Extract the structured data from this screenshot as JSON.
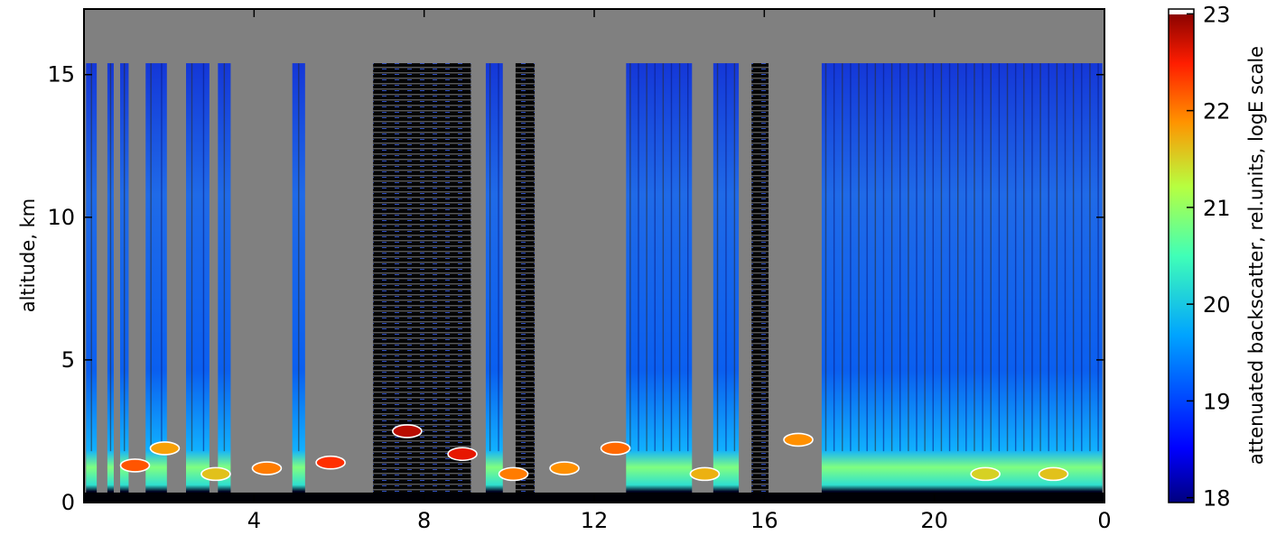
{
  "chart_data": {
    "type": "heatmap",
    "title": "",
    "xlabel": "",
    "ylabel": "altitude, km",
    "x_ticks": [
      4,
      8,
      12,
      16,
      20,
      0
    ],
    "x_tick_labels": [
      "4",
      "8",
      "12",
      "16",
      "20",
      "0"
    ],
    "y_ticks": [
      0,
      5,
      10,
      15
    ],
    "y_tick_labels": [
      "0",
      "5",
      "10",
      "15"
    ],
    "ylim": [
      0,
      17.3
    ],
    "colorbar": {
      "label": "attenuated backscatter, rel.units, logE scale",
      "range": [
        17.95,
        23.05
      ],
      "ticks": [
        18,
        19,
        20,
        21,
        22,
        23
      ],
      "tick_labels": [
        "18",
        "19",
        "20",
        "21",
        "22",
        "23"
      ],
      "colormap": "jet"
    },
    "background_color": "#808080",
    "mask_top_altitude_km": 15.4,
    "surface_layer_top_km": 0.35,
    "boundary_layer_top_km": 1.8,
    "data_columns": [
      {
        "x": [
          0.05,
          0.3
        ],
        "state": "signal"
      },
      {
        "x": [
          0.55,
          0.7
        ],
        "state": "signal"
      },
      {
        "x": [
          0.85,
          1.05
        ],
        "state": "signal"
      },
      {
        "x": [
          1.45,
          1.95
        ],
        "state": "signal"
      },
      {
        "x": [
          2.4,
          2.95
        ],
        "state": "signal"
      },
      {
        "x": [
          3.15,
          3.45
        ],
        "state": "signal"
      },
      {
        "x": [
          4.9,
          5.2
        ],
        "state": "signal"
      },
      {
        "x": [
          6.8,
          9.1
        ],
        "state": "noise"
      },
      {
        "x": [
          9.45,
          9.85
        ],
        "state": "signal"
      },
      {
        "x": [
          10.15,
          10.6
        ],
        "state": "noise"
      },
      {
        "x": [
          12.75,
          14.3
        ],
        "state": "signal"
      },
      {
        "x": [
          14.8,
          15.4
        ],
        "state": "signal"
      },
      {
        "x": [
          15.7,
          16.1
        ],
        "state": "noise"
      },
      {
        "x": [
          17.35,
          23.95
        ],
        "state": "signal"
      }
    ],
    "cloud_patches": [
      {
        "x": 1.2,
        "alt": 1.3,
        "value": 22.2
      },
      {
        "x": 1.9,
        "alt": 1.9,
        "value": 21.8
      },
      {
        "x": 3.1,
        "alt": 1.0,
        "value": 21.6
      },
      {
        "x": 4.3,
        "alt": 1.2,
        "value": 22.0
      },
      {
        "x": 5.8,
        "alt": 1.4,
        "value": 22.4
      },
      {
        "x": 7.6,
        "alt": 2.5,
        "value": 22.8
      },
      {
        "x": 8.9,
        "alt": 1.7,
        "value": 22.6
      },
      {
        "x": 10.1,
        "alt": 1.0,
        "value": 22.0
      },
      {
        "x": 11.3,
        "alt": 1.2,
        "value": 21.9
      },
      {
        "x": 12.5,
        "alt": 1.9,
        "value": 22.1
      },
      {
        "x": 14.6,
        "alt": 1.0,
        "value": 21.7
      },
      {
        "x": 16.8,
        "alt": 2.2,
        "value": 21.9
      },
      {
        "x": 21.2,
        "alt": 1.0,
        "value": 21.5
      },
      {
        "x": 22.8,
        "alt": 1.0,
        "value": 21.6
      }
    ]
  }
}
